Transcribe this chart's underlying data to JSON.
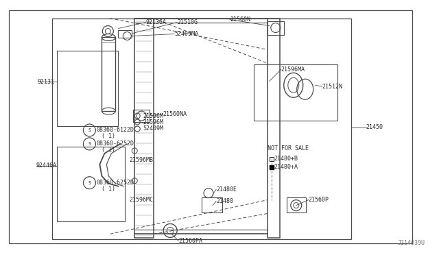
{
  "bg_color": "#ffffff",
  "line_color": "#4a4a4a",
  "text_color": "#2a2a2a",
  "watermark": "J214039U",
  "figsize": [
    6.4,
    3.72
  ],
  "dpi": 100,
  "xlim": [
    0,
    640
  ],
  "ylim": [
    0,
    372
  ]
}
